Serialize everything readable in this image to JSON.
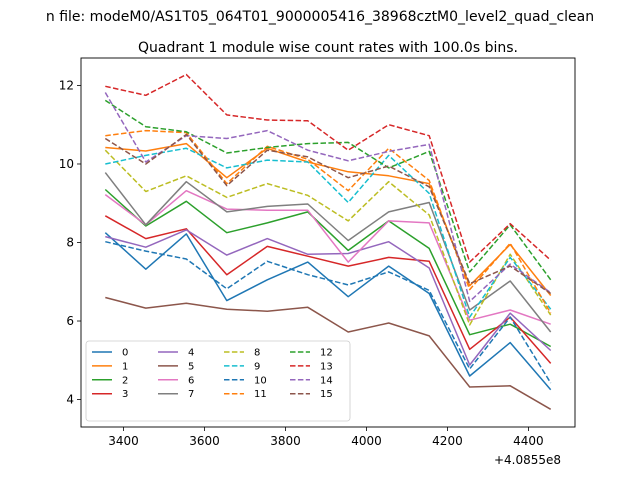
{
  "chart_data": {
    "type": "line",
    "suptitle": "n file: modeM0/AS1T05_064T01_9000005416_38968cztM0_level2_quad_clean",
    "title": "Quadrant 1 module wise count rates with 100.0s bins.",
    "x_offset_label": "+4.0855e8",
    "x": [
      3355,
      3455,
      3555,
      3655,
      3755,
      3855,
      3955,
      4055,
      4155,
      4255,
      4355,
      4455
    ],
    "xlim": [
      3295,
      4515
    ],
    "ylim": [
      3.3,
      12.7
    ],
    "xticks": [
      {
        "value": 3400,
        "label": "3400"
      },
      {
        "value": 3600,
        "label": "3600"
      },
      {
        "value": 3800,
        "label": "3800"
      },
      {
        "value": 4000,
        "label": "4000"
      },
      {
        "value": 4200,
        "label": "4200"
      },
      {
        "value": 4400,
        "label": "4400"
      }
    ],
    "yticks": [
      {
        "value": 4,
        "label": "4"
      },
      {
        "value": 6,
        "label": "6"
      },
      {
        "value": 8,
        "label": "8"
      },
      {
        "value": 10,
        "label": "10"
      },
      {
        "value": 12,
        "label": "12"
      }
    ],
    "series": [
      {
        "name": "0",
        "color": "#1f77b4",
        "style": "solid",
        "values": [
          8.25,
          7.32,
          8.22,
          6.52,
          7.05,
          7.5,
          6.62,
          7.4,
          6.7,
          4.6,
          5.45,
          4.25
        ]
      },
      {
        "name": "1",
        "color": "#ff7f0e",
        "style": "solid",
        "values": [
          10.42,
          10.33,
          10.52,
          9.65,
          10.4,
          10.05,
          9.8,
          9.7,
          9.5,
          6.9,
          7.95,
          6.65
        ]
      },
      {
        "name": "2",
        "color": "#2ca02c",
        "style": "solid",
        "values": [
          9.35,
          8.42,
          9.05,
          8.25,
          8.5,
          8.78,
          7.8,
          8.55,
          7.85,
          5.65,
          5.92,
          5.35
        ]
      },
      {
        "name": "3",
        "color": "#d62728",
        "style": "solid",
        "values": [
          8.68,
          8.1,
          8.35,
          7.18,
          7.9,
          7.65,
          7.4,
          7.62,
          7.52,
          5.28,
          6.1,
          4.92
        ]
      },
      {
        "name": "4",
        "color": "#9467bd",
        "style": "solid",
        "values": [
          8.15,
          7.88,
          8.32,
          7.68,
          8.1,
          7.7,
          7.72,
          8.02,
          7.35,
          4.88,
          6.2,
          5.25
        ]
      },
      {
        "name": "5",
        "color": "#8c564b",
        "style": "solid",
        "values": [
          6.6,
          6.33,
          6.45,
          6.3,
          6.25,
          6.35,
          5.72,
          5.95,
          5.62,
          4.32,
          4.35,
          3.75
        ]
      },
      {
        "name": "6",
        "color": "#e377c2",
        "style": "solid",
        "values": [
          9.22,
          8.45,
          9.32,
          8.85,
          8.82,
          8.82,
          7.5,
          8.55,
          8.5,
          6.02,
          6.28,
          5.92
        ]
      },
      {
        "name": "7",
        "color": "#7f7f7f",
        "style": "solid",
        "values": [
          9.78,
          8.45,
          9.55,
          8.78,
          8.92,
          8.98,
          8.05,
          8.78,
          9.02,
          6.28,
          7.02,
          5.72
        ]
      },
      {
        "name": "8",
        "color": "#bcbd22",
        "style": "dashed",
        "values": [
          10.35,
          9.3,
          9.7,
          9.15,
          9.5,
          9.2,
          8.55,
          9.55,
          8.7,
          5.9,
          7.7,
          6.15
        ]
      },
      {
        "name": "9",
        "color": "#17becf",
        "style": "dashed",
        "values": [
          10.0,
          10.22,
          10.4,
          9.9,
          10.1,
          10.05,
          9.02,
          10.22,
          9.25,
          6.1,
          7.62,
          6.3
        ]
      },
      {
        "name": "10",
        "color": "#1f77b4",
        "style": "dashed",
        "values": [
          8.02,
          7.78,
          7.58,
          6.82,
          7.52,
          7.18,
          6.92,
          7.25,
          6.78,
          4.78,
          6.1,
          4.42
        ]
      },
      {
        "name": "11",
        "color": "#ff7f0e",
        "style": "dashed",
        "values": [
          10.72,
          10.85,
          10.8,
          9.5,
          10.45,
          10.12,
          9.32,
          10.4,
          9.58,
          6.8,
          7.98,
          6.2
        ]
      },
      {
        "name": "12",
        "color": "#2ca02c",
        "style": "dashed",
        "values": [
          11.62,
          10.95,
          10.82,
          10.28,
          10.42,
          10.52,
          10.55,
          9.9,
          10.32,
          7.25,
          8.45,
          7.05
        ]
      },
      {
        "name": "13",
        "color": "#d62728",
        "style": "dashed",
        "values": [
          11.98,
          11.75,
          12.28,
          11.25,
          11.12,
          11.1,
          10.35,
          11.0,
          10.72,
          7.5,
          8.48,
          7.55
        ]
      },
      {
        "name": "14",
        "color": "#9467bd",
        "style": "dashed",
        "values": [
          11.82,
          10.05,
          10.72,
          10.65,
          10.85,
          10.35,
          10.08,
          10.32,
          10.5,
          6.5,
          7.45,
          6.72
        ]
      },
      {
        "name": "15",
        "color": "#8c564b",
        "style": "dashed",
        "values": [
          10.65,
          10.0,
          10.75,
          9.45,
          10.35,
          10.18,
          9.65,
          9.95,
          9.42,
          6.95,
          7.4,
          6.7
        ]
      }
    ],
    "legend": {
      "location": "lower-left",
      "columns": 4
    }
  }
}
